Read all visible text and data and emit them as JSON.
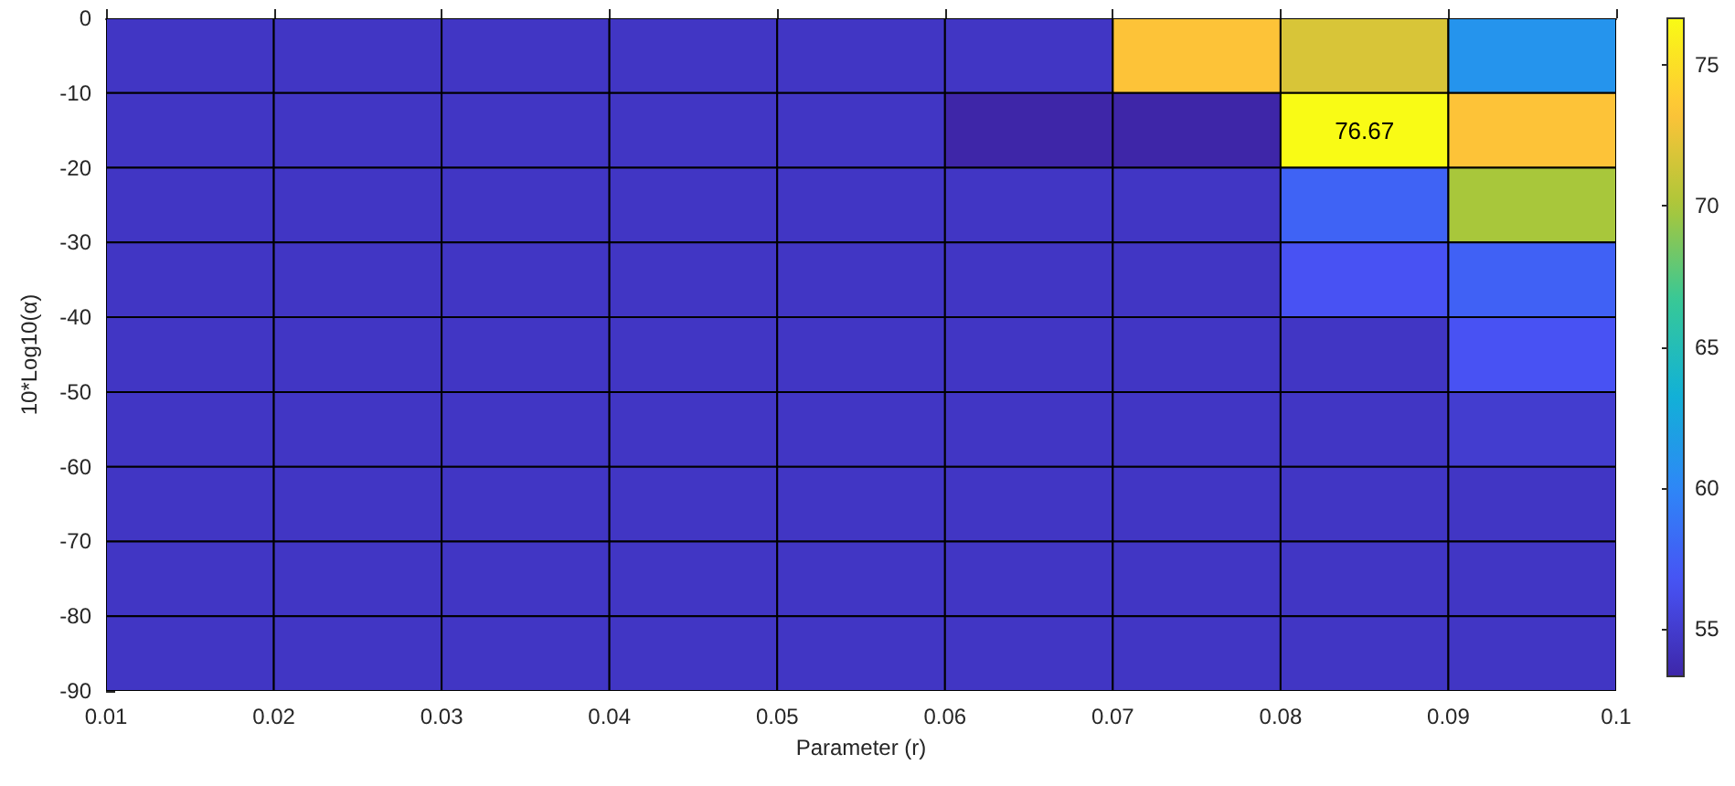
{
  "chart_data": {
    "type": "heatmap",
    "xlabel": "Parameter (r)",
    "ylabel": "10*Log10(α)",
    "xlim": [
      0.01,
      0.1
    ],
    "xticks": [
      0.01,
      0.02,
      0.03,
      0.04,
      0.05,
      0.06,
      0.07,
      0.08,
      0.09,
      0.1
    ],
    "ylim": [
      -90,
      0
    ],
    "yticks": [
      0,
      -10,
      -20,
      -30,
      -40,
      -50,
      -60,
      -70,
      -80,
      -90
    ],
    "cells": [
      [
        54.5,
        54.5,
        54.5,
        54.5,
        54.5,
        54.5,
        73.3,
        71.8,
        61
      ],
      [
        54.5,
        54.5,
        54.5,
        54.5,
        54.5,
        53.3,
        53.3,
        76.67,
        73.3
      ],
      [
        54.5,
        54.5,
        54.5,
        54.5,
        54.5,
        54.5,
        54.5,
        57.7,
        69.9
      ],
      [
        54.5,
        54.5,
        54.5,
        54.5,
        54.5,
        54.5,
        54.5,
        56.6,
        57.6
      ],
      [
        54.5,
        54.5,
        54.5,
        54.5,
        54.5,
        54.5,
        54.5,
        54.5,
        56.6
      ],
      [
        54.5,
        54.5,
        54.5,
        54.5,
        54.5,
        54.5,
        54.5,
        54.5,
        55
      ],
      [
        54.5,
        54.5,
        54.5,
        54.5,
        54.5,
        54.5,
        54.5,
        54.5,
        54.5
      ],
      [
        54.5,
        54.5,
        54.5,
        54.5,
        54.5,
        54.5,
        54.5,
        54.5,
        54.5
      ],
      [
        54.5,
        54.5,
        54.5,
        54.5,
        54.5,
        54.5,
        54.5,
        54.5,
        54.5
      ]
    ],
    "cell_labels": [
      [
        null,
        null,
        null,
        null,
        null,
        null,
        null,
        null,
        null
      ],
      [
        null,
        null,
        null,
        null,
        null,
        null,
        null,
        "76.67",
        null
      ],
      [
        null,
        null,
        null,
        null,
        null,
        null,
        null,
        null,
        null
      ],
      [
        null,
        null,
        null,
        null,
        null,
        null,
        null,
        null,
        null
      ],
      [
        null,
        null,
        null,
        null,
        null,
        null,
        null,
        null,
        null
      ],
      [
        null,
        null,
        null,
        null,
        null,
        null,
        null,
        null,
        null
      ],
      [
        null,
        null,
        null,
        null,
        null,
        null,
        null,
        null,
        null
      ],
      [
        null,
        null,
        null,
        null,
        null,
        null,
        null,
        null,
        null
      ],
      [
        null,
        null,
        null,
        null,
        null,
        null,
        null,
        null,
        null
      ]
    ],
    "clim": [
      53.3,
      76.67
    ],
    "cticks": [
      55,
      60,
      65,
      70,
      75
    ]
  }
}
